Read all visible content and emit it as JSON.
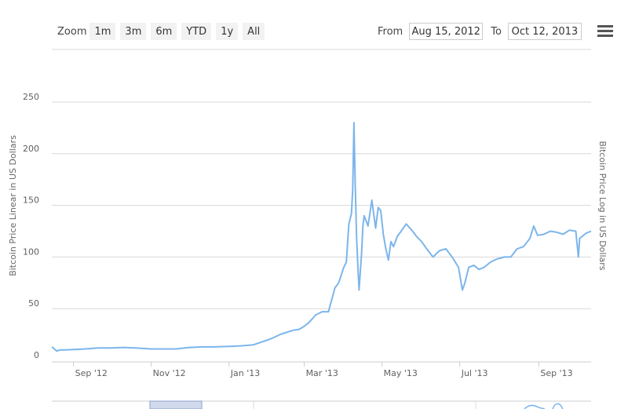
{
  "range_selector": {
    "zoom_label": "Zoom",
    "buttons": [
      "1m",
      "3m",
      "6m",
      "YTD",
      "1y",
      "All"
    ],
    "from_label": "From",
    "from_value": "Aug 15, 2012",
    "to_label": "To",
    "to_value": "Oct 12, 2013"
  },
  "menu": {
    "icon": "hamburger-menu-icon"
  },
  "colors": {
    "line": "#7cb5ec",
    "grid": "#d8d8d8",
    "text": "#555555",
    "navigator_mask": "rgba(102,133,194,0.3)"
  },
  "chart_data": {
    "type": "line",
    "ylabel": "Bitcoin Price Linear in US Dollars",
    "ylabel_right": "Bitcoin Price Log in US Dollars",
    "ylim": [
      0,
      250
    ],
    "yticks": [
      0,
      50,
      100,
      150,
      200,
      250
    ],
    "xlim": [
      "2012-08-15",
      "2013-10-12"
    ],
    "xticks": [
      "Sep '12",
      "Nov '12",
      "Jan '13",
      "Mar '13",
      "May '13",
      "Jul '13",
      "Sep '13"
    ],
    "grid": true,
    "series": [
      {
        "x": [
          "2012-08-15",
          "2012-08-17",
          "2012-08-19",
          "2012-08-21",
          "2012-08-25",
          "2012-09-01",
          "2012-09-10",
          "2012-09-20",
          "2012-10-01",
          "2012-10-10",
          "2012-10-20",
          "2012-11-01",
          "2012-11-10",
          "2012-11-20",
          "2012-12-01",
          "2012-12-10",
          "2012-12-20",
          "2013-01-01",
          "2013-01-10",
          "2013-01-20",
          "2013-01-25",
          "2013-02-01",
          "2013-02-05",
          "2013-02-10",
          "2013-02-15",
          "2013-02-20",
          "2013-02-25",
          "2013-03-01",
          "2013-03-05",
          "2013-03-10",
          "2013-03-15",
          "2013-03-20",
          "2013-03-25",
          "2013-03-28",
          "2013-04-01",
          "2013-04-03",
          "2013-04-05",
          "2013-04-07",
          "2013-04-08",
          "2013-04-09",
          "2013-04-10",
          "2013-04-11",
          "2013-04-12",
          "2013-04-13",
          "2013-04-15",
          "2013-04-16",
          "2013-04-17",
          "2013-04-20",
          "2013-04-23",
          "2013-04-26",
          "2013-04-28",
          "2013-04-30",
          "2013-05-02",
          "2013-05-04",
          "2013-05-06",
          "2013-05-08",
          "2013-05-10",
          "2013-05-13",
          "2013-05-16",
          "2013-05-20",
          "2013-05-25",
          "2013-05-28",
          "2013-06-01",
          "2013-06-05",
          "2013-06-10",
          "2013-06-15",
          "2013-06-20",
          "2013-06-25",
          "2013-06-30",
          "2013-07-03",
          "2013-07-05",
          "2013-07-08",
          "2013-07-12",
          "2013-07-16",
          "2013-07-20",
          "2013-07-25",
          "2013-07-30",
          "2013-08-05",
          "2013-08-10",
          "2013-08-15",
          "2013-08-20",
          "2013-08-25",
          "2013-08-28",
          "2013-08-31",
          "2013-09-05",
          "2013-09-10",
          "2013-09-15",
          "2013-09-20",
          "2013-09-25",
          "2013-09-30",
          "2013-10-02",
          "2013-10-03",
          "2013-10-05",
          "2013-10-08",
          "2013-10-12"
        ],
        "y": [
          13,
          11,
          9,
          10,
          10,
          10.5,
          11,
          12,
          12,
          12.5,
          12,
          11,
          11,
          11,
          12.5,
          13,
          13,
          13.5,
          14,
          15,
          17,
          20,
          22,
          25,
          27,
          29,
          30,
          33,
          37,
          44,
          47,
          47,
          70,
          75,
          90,
          95,
          132,
          142,
          165,
          230,
          170,
          120,
          92,
          68,
          105,
          130,
          140,
          130,
          155,
          128,
          148,
          145,
          122,
          108,
          97,
          115,
          110,
          120,
          125,
          132,
          125,
          120,
          115,
          108,
          100,
          106,
          108,
          100,
          90,
          68,
          75,
          90,
          92,
          88,
          90,
          95,
          98,
          100,
          100,
          108,
          110,
          118,
          130,
          121,
          122,
          125,
          124,
          122,
          126,
          125,
          100,
          118,
          120,
          123,
          125
        ]
      }
    ]
  }
}
